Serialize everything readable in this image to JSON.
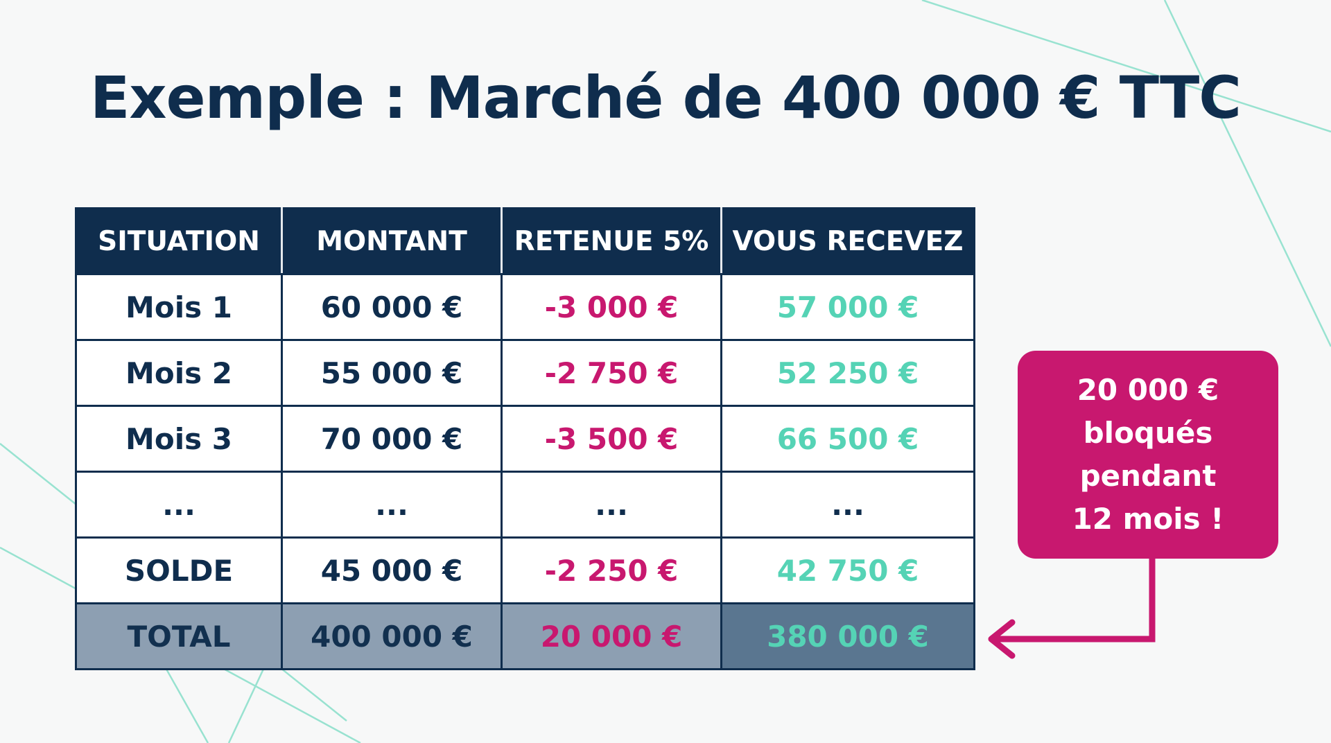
{
  "title": "Exemple : Marché de 400 000 € TTC",
  "table": {
    "headers": [
      "SITUATION",
      "MONTANT",
      "RETENUE 5%",
      "VOUS RECEVEZ"
    ],
    "rows": [
      [
        "Mois 1",
        "60 000 €",
        "-3 000 €",
        "57 000 €"
      ],
      [
        "Mois 2",
        "55 000 €",
        "-2 750 €",
        "52 250 €"
      ],
      [
        "Mois 3",
        "70 000 €",
        "-3 500 €",
        "66 500 €"
      ],
      [
        "...",
        "...",
        "...",
        "..."
      ],
      [
        "SOLDE",
        "45 000 €",
        "-2 250 €",
        "42 750 €"
      ]
    ],
    "total": [
      "TOTAL",
      "400 000 €",
      "20 000 €",
      "380 000 €"
    ]
  },
  "callout": {
    "text": "20 000 €\nbloqués\npendant\n12 mois !"
  },
  "colors": {
    "navy": "#0f2d4d",
    "accent_pink": "#c8186f",
    "accent_green": "#55d3b5"
  }
}
